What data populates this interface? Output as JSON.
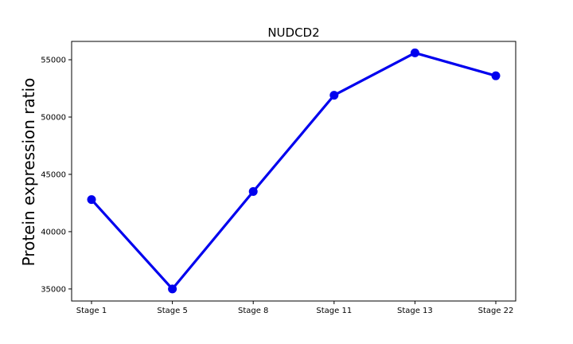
{
  "chart_data": {
    "type": "line",
    "title": "NUDCD2",
    "xlabel": "",
    "ylabel": "Protein expression ratio",
    "categories": [
      "Stage 1",
      "Stage 5",
      "Stage 8",
      "Stage 11",
      "Stage 13",
      "Stage 22"
    ],
    "series": [
      {
        "values": [
          42800,
          35000,
          43500,
          51900,
          55600,
          53600
        ],
        "color": "#0000ee"
      }
    ],
    "ylim": [
      33950,
      56600
    ],
    "yticks": [
      35000,
      40000,
      45000,
      50000,
      55000
    ],
    "ytick_labels": [
      "35000",
      "40000",
      "45000",
      "50000",
      "55000"
    ],
    "grid": false,
    "legend": "none"
  }
}
